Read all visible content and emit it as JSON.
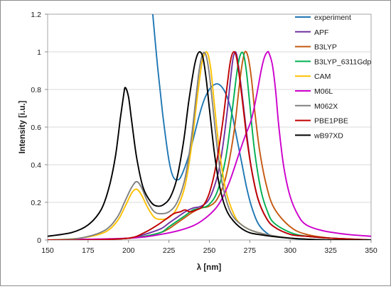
{
  "chart_data": {
    "type": "line",
    "title": "",
    "xlabel": "λ [nm]",
    "ylabel": "Intensity [i.u.]",
    "xlim": [
      150,
      350
    ],
    "ylim": [
      0,
      1.2
    ],
    "x_ticks": [
      150,
      175,
      200,
      225,
      250,
      275,
      300,
      325,
      350
    ],
    "y_ticks": [
      0,
      0.2,
      0.4,
      0.6,
      0.8,
      1,
      1.2
    ],
    "grid": "horizontal",
    "legend_position": "right",
    "series": [
      {
        "name": "experiment",
        "color": "#1f77b4",
        "x": [
          215,
          218,
          221,
          224,
          226,
          228,
          230,
          232,
          235,
          238,
          241,
          244,
          247,
          250,
          252,
          255,
          258,
          261,
          264,
          267,
          270,
          273,
          276,
          280,
          285,
          290,
          300,
          310,
          320,
          330,
          340,
          350
        ],
        "y": [
          1.2,
          0.92,
          0.68,
          0.48,
          0.38,
          0.33,
          0.32,
          0.33,
          0.39,
          0.47,
          0.57,
          0.67,
          0.75,
          0.8,
          0.82,
          0.83,
          0.81,
          0.76,
          0.67,
          0.54,
          0.41,
          0.28,
          0.18,
          0.09,
          0.04,
          0.02,
          0.01,
          0.0,
          0.0,
          0.0,
          0.0,
          0.0
        ]
      },
      {
        "name": "APF",
        "color": "#7030a0",
        "x": [
          150,
          175,
          200,
          210,
          220,
          225,
          230,
          235,
          240,
          245,
          250,
          255,
          258,
          261,
          263,
          265,
          267,
          270,
          273,
          276,
          280,
          285,
          290,
          300,
          310,
          325,
          350
        ],
        "y": [
          0.0,
          0.0,
          0.01,
          0.03,
          0.06,
          0.09,
          0.12,
          0.15,
          0.17,
          0.18,
          0.22,
          0.34,
          0.48,
          0.68,
          0.85,
          0.98,
          0.98,
          0.79,
          0.57,
          0.38,
          0.22,
          0.12,
          0.07,
          0.03,
          0.02,
          0.01,
          0.0
        ]
      },
      {
        "name": "B3LYP",
        "color": "#c55a11",
        "x": [
          150,
          175,
          200,
          210,
          220,
          225,
          230,
          235,
          240,
          245,
          250,
          255,
          260,
          265,
          268,
          270,
          272,
          274,
          276,
          278,
          281,
          285,
          290,
          300,
          310,
          325,
          350
        ],
        "y": [
          0.0,
          0.0,
          0.01,
          0.02,
          0.04,
          0.06,
          0.09,
          0.12,
          0.15,
          0.17,
          0.18,
          0.22,
          0.33,
          0.56,
          0.78,
          0.92,
          1.0,
          0.97,
          0.86,
          0.69,
          0.48,
          0.3,
          0.17,
          0.07,
          0.03,
          0.01,
          0.0
        ]
      },
      {
        "name": "B3LYP_6311Gdp",
        "color": "#00b050",
        "x": [
          150,
          175,
          200,
          210,
          220,
          225,
          230,
          235,
          240,
          245,
          250,
          255,
          260,
          264,
          267,
          269,
          271,
          273,
          275,
          278,
          282,
          286,
          290,
          300,
          310,
          325,
          350
        ],
        "y": [
          0.0,
          0.0,
          0.01,
          0.02,
          0.04,
          0.07,
          0.1,
          0.13,
          0.16,
          0.17,
          0.19,
          0.26,
          0.43,
          0.68,
          0.89,
          0.98,
          0.99,
          0.89,
          0.72,
          0.47,
          0.26,
          0.15,
          0.09,
          0.04,
          0.02,
          0.01,
          0.0
        ]
      },
      {
        "name": "CAM",
        "color": "#ffc000",
        "x": [
          150,
          170,
          185,
          193,
          198,
          202,
          205,
          208,
          212,
          216,
          220,
          225,
          230,
          235,
          239,
          242,
          245,
          247,
          249,
          251,
          253,
          256,
          260,
          265,
          270,
          280,
          300,
          325,
          350
        ],
        "y": [
          0.0,
          0.01,
          0.04,
          0.1,
          0.18,
          0.25,
          0.27,
          0.24,
          0.17,
          0.12,
          0.11,
          0.12,
          0.17,
          0.29,
          0.5,
          0.72,
          0.92,
          0.99,
          0.99,
          0.9,
          0.73,
          0.49,
          0.27,
          0.14,
          0.08,
          0.04,
          0.01,
          0.0,
          0.0
        ]
      },
      {
        "name": "M06L",
        "color": "#cc00cc",
        "x": [
          150,
          200,
          220,
          235,
          245,
          255,
          262,
          268,
          272,
          276,
          279,
          282,
          284,
          286,
          287,
          289,
          291,
          293,
          296,
          300,
          305,
          310,
          320,
          335,
          350
        ],
        "y": [
          0.0,
          0.01,
          0.03,
          0.06,
          0.1,
          0.18,
          0.3,
          0.45,
          0.55,
          0.64,
          0.76,
          0.9,
          0.97,
          1.0,
          0.99,
          0.93,
          0.79,
          0.6,
          0.39,
          0.23,
          0.13,
          0.08,
          0.05,
          0.03,
          0.02
        ]
      },
      {
        "name": "M062X",
        "color": "#808080",
        "x": [
          150,
          170,
          185,
          193,
          198,
          202,
          205,
          208,
          212,
          216,
          220,
          225,
          230,
          235,
          239,
          242,
          244,
          246,
          248,
          250,
          252,
          255,
          258,
          263,
          270,
          280,
          300,
          325,
          350
        ],
        "y": [
          0.0,
          0.01,
          0.05,
          0.12,
          0.21,
          0.28,
          0.31,
          0.28,
          0.2,
          0.15,
          0.14,
          0.15,
          0.2,
          0.33,
          0.55,
          0.78,
          0.92,
          0.99,
          0.98,
          0.88,
          0.72,
          0.48,
          0.3,
          0.15,
          0.08,
          0.04,
          0.01,
          0.0,
          0.0
        ]
      },
      {
        "name": "PBE1PBE",
        "color": "#c00000",
        "x": [
          150,
          175,
          200,
          210,
          218,
          223,
          228,
          232,
          235,
          238,
          242,
          246,
          250,
          254,
          258,
          261,
          263,
          265,
          267,
          270,
          273,
          276,
          280,
          285,
          290,
          300,
          310,
          325,
          350
        ],
        "y": [
          0.0,
          0.0,
          0.01,
          0.04,
          0.08,
          0.11,
          0.14,
          0.15,
          0.16,
          0.15,
          0.16,
          0.18,
          0.25,
          0.39,
          0.61,
          0.82,
          0.95,
          1.0,
          0.96,
          0.77,
          0.55,
          0.38,
          0.22,
          0.12,
          0.07,
          0.03,
          0.02,
          0.01,
          0.0
        ]
      },
      {
        "name": "wB97XD",
        "color": "#000000",
        "x": [
          150,
          165,
          175,
          183,
          188,
          192,
          195,
          197,
          198,
          200,
          202,
          205,
          209,
          214,
          218,
          222,
          226,
          230,
          234,
          237,
          240,
          242,
          244,
          246,
          248,
          250,
          253,
          256,
          260,
          265,
          272,
          280,
          300,
          325,
          350
        ],
        "y": [
          0.02,
          0.04,
          0.08,
          0.16,
          0.28,
          0.45,
          0.65,
          0.77,
          0.81,
          0.76,
          0.63,
          0.44,
          0.28,
          0.2,
          0.18,
          0.19,
          0.23,
          0.33,
          0.52,
          0.72,
          0.89,
          0.97,
          1.0,
          0.97,
          0.86,
          0.7,
          0.47,
          0.3,
          0.17,
          0.1,
          0.05,
          0.03,
          0.01,
          0.0,
          0.0
        ]
      }
    ]
  }
}
